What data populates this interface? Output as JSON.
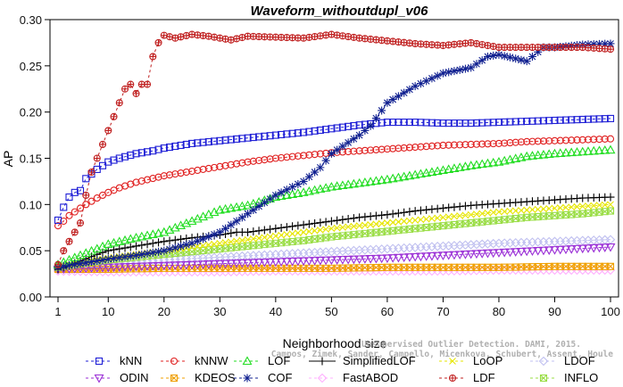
{
  "chart_data": {
    "type": "line",
    "title": "Waveform_withoutdupl_v06",
    "xlabel": "Neighborhood size",
    "ylabel": "AP",
    "xlim": [
      1,
      100
    ],
    "ylim": [
      0,
      0.3
    ],
    "x_ticks": [
      1,
      10,
      20,
      30,
      40,
      50,
      60,
      70,
      80,
      90,
      100
    ],
    "x_tick_labels": [
      "1",
      "10",
      "20",
      "30",
      "40",
      "50",
      "60",
      "70",
      "80",
      "90",
      "100"
    ],
    "y_ticks": [
      0,
      0.05,
      0.1,
      0.15,
      0.2,
      0.25,
      0.3
    ],
    "y_tick_labels": [
      "0.00",
      "0.05",
      "0.10",
      "0.15",
      "0.20",
      "0.25",
      "0.30"
    ],
    "grid": false,
    "legend_position": "bottom",
    "watermark_lines": [
      "Campos, Zimek, Sander, Campello, Micenkova, Schubert, Assent, Houle",
      "Unsupervised Outlier Detection. DAMI, 2015."
    ],
    "series": [
      {
        "name": "kNN",
        "color": "#1f1fd6",
        "marker": "square",
        "line": "dashed",
        "values": [
          [
            1,
            0.083
          ],
          [
            2,
            0.097
          ],
          [
            3,
            0.108
          ],
          [
            4,
            0.113
          ],
          [
            5,
            0.115
          ],
          [
            6,
            0.128
          ],
          [
            7,
            0.133
          ],
          [
            8,
            0.138
          ],
          [
            9,
            0.142
          ],
          [
            10,
            0.146
          ],
          [
            12,
            0.15
          ],
          [
            15,
            0.155
          ],
          [
            18,
            0.158
          ],
          [
            20,
            0.161
          ],
          [
            25,
            0.166
          ],
          [
            30,
            0.169
          ],
          [
            35,
            0.172
          ],
          [
            40,
            0.175
          ],
          [
            45,
            0.178
          ],
          [
            50,
            0.182
          ],
          [
            55,
            0.186
          ],
          [
            60,
            0.189
          ],
          [
            65,
            0.189
          ],
          [
            70,
            0.188
          ],
          [
            75,
            0.188
          ],
          [
            80,
            0.189
          ],
          [
            85,
            0.19
          ],
          [
            90,
            0.191
          ],
          [
            95,
            0.192
          ],
          [
            100,
            0.193
          ]
        ]
      },
      {
        "name": "kNNW",
        "color": "#e02020",
        "marker": "circle",
        "line": "dashed",
        "values": [
          [
            1,
            0.077
          ],
          [
            2,
            0.082
          ],
          [
            3,
            0.088
          ],
          [
            4,
            0.092
          ],
          [
            5,
            0.096
          ],
          [
            6,
            0.1
          ],
          [
            8,
            0.107
          ],
          [
            10,
            0.113
          ],
          [
            12,
            0.118
          ],
          [
            15,
            0.124
          ],
          [
            20,
            0.131
          ],
          [
            25,
            0.136
          ],
          [
            30,
            0.141
          ],
          [
            35,
            0.146
          ],
          [
            40,
            0.15
          ],
          [
            45,
            0.153
          ],
          [
            50,
            0.156
          ],
          [
            55,
            0.158
          ],
          [
            60,
            0.16
          ],
          [
            65,
            0.162
          ],
          [
            70,
            0.164
          ],
          [
            75,
            0.165
          ],
          [
            80,
            0.166
          ],
          [
            85,
            0.168
          ],
          [
            90,
            0.169
          ],
          [
            95,
            0.17
          ],
          [
            100,
            0.171
          ]
        ]
      },
      {
        "name": "LOF",
        "color": "#22dd22",
        "marker": "triangle",
        "line": "dashed",
        "values": [
          [
            1,
            0.035
          ],
          [
            3,
            0.04
          ],
          [
            5,
            0.045
          ],
          [
            8,
            0.052
          ],
          [
            10,
            0.057
          ],
          [
            15,
            0.064
          ],
          [
            20,
            0.07
          ],
          [
            25,
            0.082
          ],
          [
            30,
            0.094
          ],
          [
            35,
            0.099
          ],
          [
            40,
            0.108
          ],
          [
            45,
            0.113
          ],
          [
            50,
            0.119
          ],
          [
            55,
            0.123
          ],
          [
            60,
            0.127
          ],
          [
            65,
            0.132
          ],
          [
            70,
            0.137
          ],
          [
            75,
            0.142
          ],
          [
            80,
            0.146
          ],
          [
            85,
            0.152
          ],
          [
            90,
            0.155
          ],
          [
            95,
            0.157
          ],
          [
            100,
            0.159
          ]
        ]
      },
      {
        "name": "SimplifiedLOF",
        "color": "#000000",
        "marker": "plus",
        "line": "solid",
        "values": [
          [
            1,
            0.03
          ],
          [
            3,
            0.034
          ],
          [
            5,
            0.039
          ],
          [
            8,
            0.046
          ],
          [
            10,
            0.05
          ],
          [
            15,
            0.055
          ],
          [
            20,
            0.06
          ],
          [
            25,
            0.064
          ],
          [
            30,
            0.067
          ],
          [
            33,
            0.07
          ],
          [
            35,
            0.07
          ],
          [
            40,
            0.074
          ],
          [
            45,
            0.078
          ],
          [
            50,
            0.082
          ],
          [
            55,
            0.086
          ],
          [
            60,
            0.089
          ],
          [
            65,
            0.093
          ],
          [
            70,
            0.096
          ],
          [
            75,
            0.099
          ],
          [
            80,
            0.101
          ],
          [
            85,
            0.103
          ],
          [
            90,
            0.105
          ],
          [
            95,
            0.107
          ],
          [
            100,
            0.108
          ]
        ]
      },
      {
        "name": "LoOP",
        "color": "#e6e600",
        "marker": "x",
        "line": "dashed",
        "values": [
          [
            1,
            0.032
          ],
          [
            5,
            0.038
          ],
          [
            10,
            0.042
          ],
          [
            15,
            0.046
          ],
          [
            20,
            0.05
          ],
          [
            25,
            0.054
          ],
          [
            30,
            0.058
          ],
          [
            35,
            0.062
          ],
          [
            40,
            0.066
          ],
          [
            45,
            0.07
          ],
          [
            50,
            0.074
          ],
          [
            55,
            0.077
          ],
          [
            60,
            0.08
          ],
          [
            65,
            0.083
          ],
          [
            70,
            0.086
          ],
          [
            75,
            0.089
          ],
          [
            80,
            0.092
          ],
          [
            85,
            0.094
          ],
          [
            90,
            0.096
          ],
          [
            95,
            0.098
          ],
          [
            100,
            0.1
          ]
        ]
      },
      {
        "name": "LDOF",
        "color": "#c0c0f0",
        "marker": "diamond",
        "line": "dashed",
        "values": [
          [
            1,
            0.033
          ],
          [
            5,
            0.035
          ],
          [
            10,
            0.037
          ],
          [
            20,
            0.04
          ],
          [
            30,
            0.043
          ],
          [
            40,
            0.046
          ],
          [
            50,
            0.049
          ],
          [
            60,
            0.052
          ],
          [
            70,
            0.055
          ],
          [
            80,
            0.058
          ],
          [
            90,
            0.06
          ],
          [
            100,
            0.062
          ]
        ]
      },
      {
        "name": "ODIN",
        "color": "#9a2ed6",
        "marker": "triangle-down",
        "line": "dashed",
        "values": [
          [
            1,
            0.03
          ],
          [
            5,
            0.031
          ],
          [
            10,
            0.032
          ],
          [
            20,
            0.034
          ],
          [
            30,
            0.036
          ],
          [
            40,
            0.038
          ],
          [
            50,
            0.04
          ],
          [
            60,
            0.042
          ],
          [
            70,
            0.045
          ],
          [
            80,
            0.048
          ],
          [
            90,
            0.051
          ],
          [
            100,
            0.054
          ]
        ]
      },
      {
        "name": "KDEOS",
        "color": "#f0a000",
        "marker": "boxed-x",
        "line": "dashed",
        "values": [
          [
            1,
            0.03
          ],
          [
            10,
            0.03
          ],
          [
            20,
            0.031
          ],
          [
            30,
            0.031
          ],
          [
            40,
            0.031
          ],
          [
            50,
            0.031
          ],
          [
            60,
            0.032
          ],
          [
            70,
            0.032
          ],
          [
            80,
            0.032
          ],
          [
            90,
            0.033
          ],
          [
            100,
            0.033
          ]
        ]
      },
      {
        "name": "COF",
        "color": "#102090",
        "marker": "star",
        "line": "dashed",
        "values": [
          [
            1,
            0.032
          ],
          [
            5,
            0.036
          ],
          [
            10,
            0.041
          ],
          [
            15,
            0.045
          ],
          [
            20,
            0.05
          ],
          [
            25,
            0.058
          ],
          [
            30,
            0.07
          ],
          [
            35,
            0.09
          ],
          [
            40,
            0.11
          ],
          [
            45,
            0.125
          ],
          [
            48,
            0.14
          ],
          [
            50,
            0.155
          ],
          [
            55,
            0.175
          ],
          [
            57,
            0.185
          ],
          [
            60,
            0.21
          ],
          [
            65,
            0.228
          ],
          [
            70,
            0.242
          ],
          [
            75,
            0.248
          ],
          [
            78,
            0.26
          ],
          [
            80,
            0.262
          ],
          [
            85,
            0.255
          ],
          [
            88,
            0.27
          ],
          [
            90,
            0.27
          ],
          [
            95,
            0.273
          ],
          [
            100,
            0.274
          ]
        ]
      },
      {
        "name": "FastABOD",
        "color": "#ffb0ff",
        "marker": "diamond",
        "line": "dashed",
        "values": [
          [
            1,
            0.028
          ],
          [
            10,
            0.027
          ],
          [
            20,
            0.027
          ],
          [
            30,
            0.027
          ],
          [
            40,
            0.028
          ],
          [
            50,
            0.028
          ],
          [
            60,
            0.028
          ],
          [
            70,
            0.028
          ],
          [
            80,
            0.029
          ],
          [
            90,
            0.029
          ],
          [
            100,
            0.029
          ]
        ]
      },
      {
        "name": "LDF",
        "color": "#c02020",
        "marker": "circle-plus",
        "line": "dashed",
        "values": [
          [
            1,
            0.035
          ],
          [
            2,
            0.05
          ],
          [
            3,
            0.06
          ],
          [
            4,
            0.07
          ],
          [
            5,
            0.08
          ],
          [
            6,
            0.11
          ],
          [
            7,
            0.135
          ],
          [
            8,
            0.15
          ],
          [
            9,
            0.165
          ],
          [
            10,
            0.18
          ],
          [
            11,
            0.195
          ],
          [
            12,
            0.21
          ],
          [
            13,
            0.225
          ],
          [
            14,
            0.23
          ],
          [
            15,
            0.22
          ],
          [
            16,
            0.23
          ],
          [
            17,
            0.23
          ],
          [
            18,
            0.26
          ],
          [
            19,
            0.275
          ],
          [
            20,
            0.283
          ],
          [
            22,
            0.28
          ],
          [
            25,
            0.284
          ],
          [
            28,
            0.282
          ],
          [
            30,
            0.28
          ],
          [
            32,
            0.278
          ],
          [
            35,
            0.282
          ],
          [
            40,
            0.281
          ],
          [
            45,
            0.28
          ],
          [
            50,
            0.284
          ],
          [
            55,
            0.28
          ],
          [
            60,
            0.277
          ],
          [
            65,
            0.274
          ],
          [
            70,
            0.272
          ],
          [
            75,
            0.275
          ],
          [
            80,
            0.27
          ],
          [
            85,
            0.27
          ],
          [
            90,
            0.27
          ],
          [
            95,
            0.27
          ],
          [
            100,
            0.268
          ]
        ]
      },
      {
        "name": "INFLO",
        "color": "#99dd44",
        "marker": "boxed-x",
        "line": "dashed",
        "values": [
          [
            1,
            0.032
          ],
          [
            5,
            0.036
          ],
          [
            10,
            0.04
          ],
          [
            15,
            0.043
          ],
          [
            20,
            0.046
          ],
          [
            25,
            0.049
          ],
          [
            30,
            0.052
          ],
          [
            35,
            0.055
          ],
          [
            40,
            0.058
          ],
          [
            45,
            0.061
          ],
          [
            50,
            0.065
          ],
          [
            55,
            0.068
          ],
          [
            60,
            0.071
          ],
          [
            65,
            0.074
          ],
          [
            70,
            0.077
          ],
          [
            75,
            0.08
          ],
          [
            80,
            0.083
          ],
          [
            85,
            0.086
          ],
          [
            90,
            0.088
          ],
          [
            95,
            0.09
          ],
          [
            100,
            0.093
          ]
        ]
      }
    ]
  }
}
